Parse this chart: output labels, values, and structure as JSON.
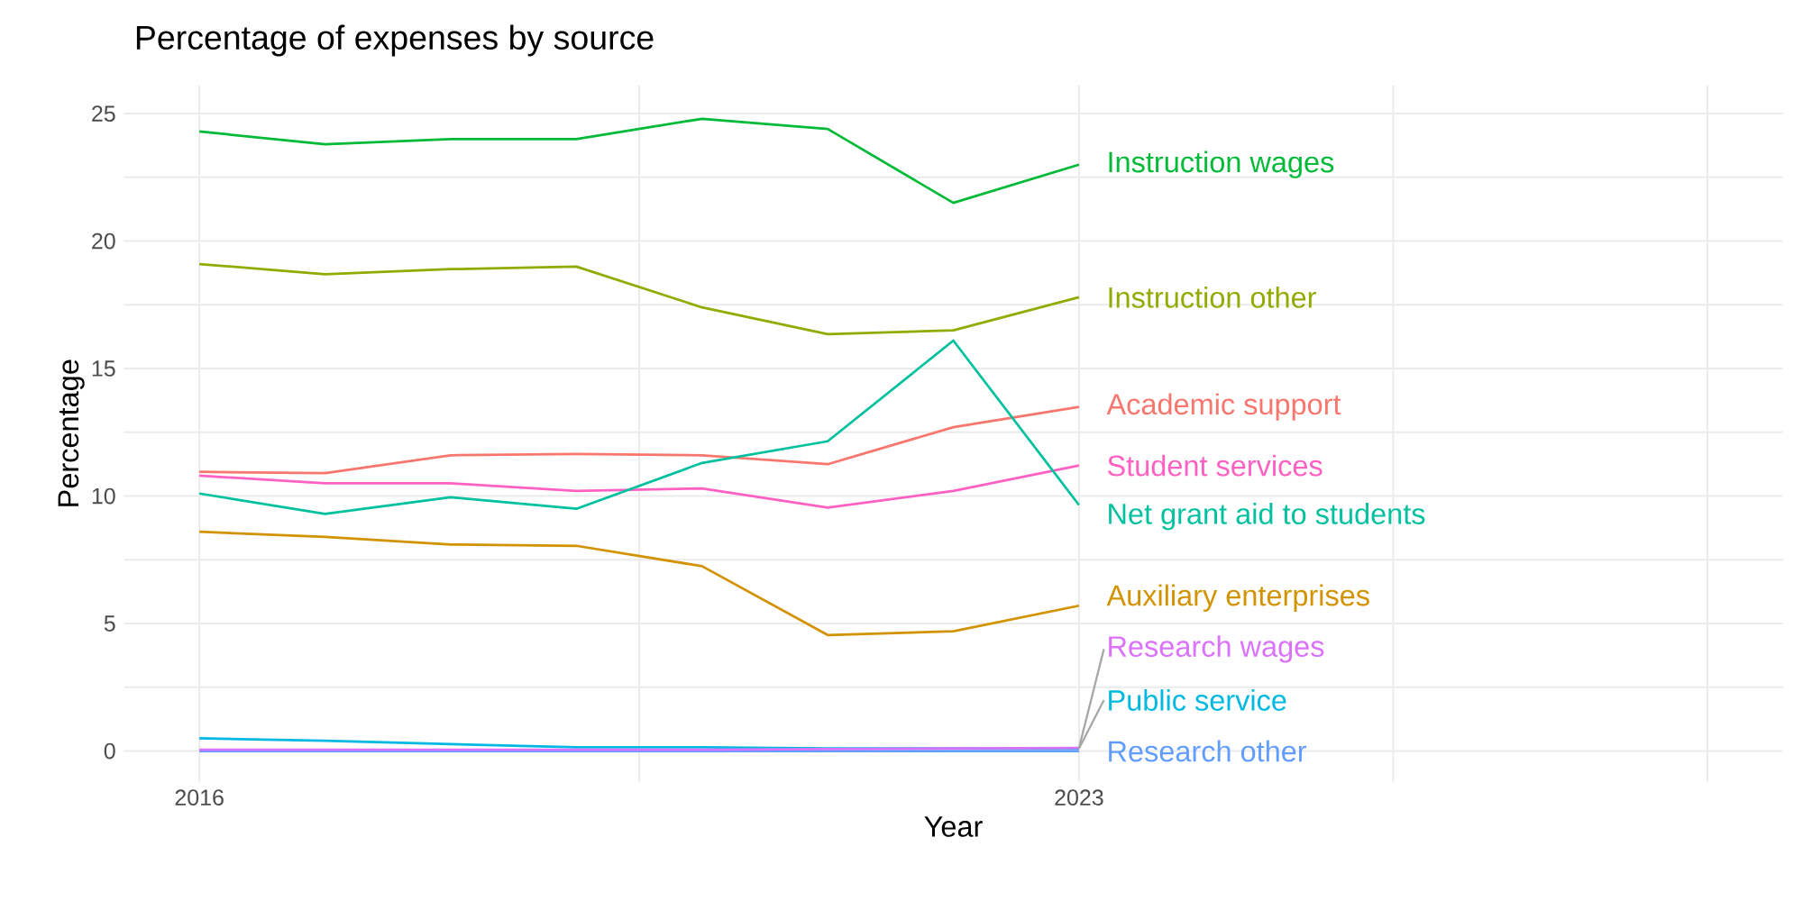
{
  "chart_data": {
    "type": "line",
    "title": "Percentage of expenses by source",
    "xlabel": "Year",
    "ylabel": "Percentage",
    "x": [
      2016,
      2017,
      2018,
      2019,
      2020,
      2021,
      2022,
      2023
    ],
    "series": [
      {
        "name": "Instruction wages",
        "color": "#00ba38",
        "values": [
          24.3,
          23.8,
          24.0,
          24.0,
          24.8,
          24.4,
          21.5,
          23.0
        ]
      },
      {
        "name": "Instruction other",
        "color": "#93aa00",
        "values": [
          19.1,
          18.7,
          18.9,
          19.0,
          17.4,
          16.35,
          16.5,
          17.8
        ]
      },
      {
        "name": "Academic support",
        "color": "#f8766d",
        "values": [
          10.95,
          10.9,
          11.6,
          11.65,
          11.6,
          11.25,
          12.7,
          13.5
        ]
      },
      {
        "name": "Student services",
        "color": "#ff61c3",
        "values": [
          10.8,
          10.5,
          10.5,
          10.2,
          10.3,
          9.55,
          10.2,
          11.2
        ]
      },
      {
        "name": "Net grant aid to students",
        "color": "#00c19f",
        "values": [
          10.1,
          9.3,
          9.95,
          9.5,
          11.3,
          12.15,
          16.1,
          9.65
        ]
      },
      {
        "name": "Auxiliary enterprises",
        "color": "#d39200",
        "values": [
          8.6,
          8.4,
          8.1,
          8.05,
          7.25,
          4.55,
          4.7,
          5.7
        ]
      },
      {
        "name": "Public service",
        "color": "#00b9e3",
        "values": [
          0.5,
          0.4,
          0.27,
          0.15,
          0.15,
          0.1,
          0.1,
          0.1
        ]
      },
      {
        "name": "Research other",
        "color": "#619cff",
        "values": [
          0.0,
          0.0,
          0.0,
          0.0,
          0.0,
          0.0,
          0.0,
          0.0
        ]
      },
      {
        "name": "Research wages",
        "color": "#db72fb",
        "values": [
          0.05,
          0.05,
          0.05,
          0.05,
          0.05,
          0.08,
          0.1,
          0.12
        ]
      }
    ],
    "xlim": [
      2015.4,
      2028.6
    ],
    "ylim": [
      -1.2,
      26.1
    ],
    "xticks": [
      2016,
      {
        "value": 2019.5,
        "label": null
      },
      2023,
      {
        "value": 2025.5,
        "label": null
      },
      {
        "value": 2028,
        "label": null
      }
    ],
    "yticks": [
      0,
      {
        "value": 2.5,
        "label": null
      },
      5,
      {
        "value": 7.5,
        "label": null
      },
      10,
      {
        "value": 12.5,
        "label": null
      },
      15,
      {
        "value": 17.5,
        "label": null
      },
      20,
      {
        "value": 22.5,
        "label": null
      },
      25
    ],
    "grid": true,
    "legend": false,
    "marker": "none",
    "line_style": "solid"
  }
}
